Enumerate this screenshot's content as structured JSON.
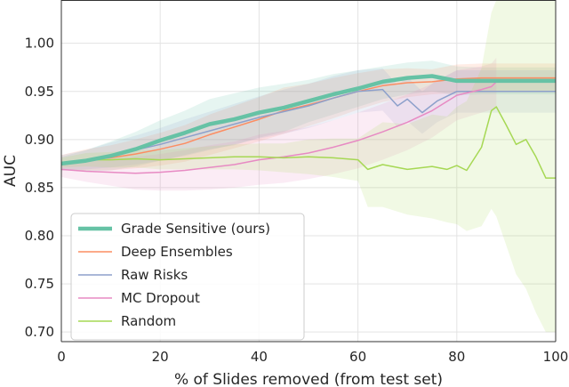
{
  "chart_data": {
    "type": "line",
    "title": "",
    "xlabel": "% of Slides removed (from test set)",
    "ylabel": "AUC",
    "xlim": [
      0,
      100
    ],
    "ylim": [
      0.69,
      1.045
    ],
    "xticks": [
      0,
      20,
      40,
      60,
      80,
      100
    ],
    "xtick_labels": [
      "0",
      "20",
      "40",
      "60",
      "80",
      "100"
    ],
    "yticks": [
      0.7,
      0.75,
      0.8,
      0.85,
      0.9,
      0.95,
      1.0
    ],
    "ytick_labels": [
      "0.70",
      "0.75",
      "0.80",
      "0.85",
      "0.90",
      "0.95",
      "1.00"
    ],
    "grid": true,
    "legend_position": "lower-left",
    "series": [
      {
        "name": "Grade Sensitive (ours)",
        "color": "#66c2a5",
        "emphasis": "thick",
        "x": [
          0,
          5,
          10,
          15,
          20,
          25,
          30,
          35,
          40,
          45,
          50,
          55,
          60,
          65,
          70,
          75,
          80,
          85,
          90,
          95,
          100
        ],
        "y": [
          0.875,
          0.878,
          0.883,
          0.89,
          0.899,
          0.907,
          0.916,
          0.921,
          0.928,
          0.933,
          0.94,
          0.947,
          0.953,
          0.96,
          0.964,
          0.966,
          0.961,
          0.961,
          0.961,
          0.961,
          0.961
        ],
        "band": {
          "lower": [
            0.868,
            0.867,
            0.868,
            0.872,
            0.878,
            0.884,
            0.89,
            0.894,
            0.902,
            0.908,
            0.918,
            0.926,
            0.934,
            0.942,
            0.947,
            0.95,
            0.946,
            0.947,
            0.947,
            0.947,
            0.947
          ],
          "upper": [
            0.882,
            0.889,
            0.898,
            0.908,
            0.92,
            0.93,
            0.942,
            0.948,
            0.954,
            0.958,
            0.962,
            0.968,
            0.972,
            0.976,
            0.98,
            0.982,
            0.976,
            0.975,
            0.975,
            0.975,
            0.975
          ]
        }
      },
      {
        "name": "Deep Ensembles",
        "color": "#fc8d62",
        "x": [
          0,
          5,
          10,
          15,
          20,
          25,
          30,
          35,
          40,
          45,
          50,
          55,
          60,
          65,
          70,
          75,
          80,
          85,
          90,
          95,
          100
        ],
        "y": [
          0.876,
          0.879,
          0.881,
          0.885,
          0.89,
          0.896,
          0.905,
          0.913,
          0.921,
          0.93,
          0.936,
          0.943,
          0.95,
          0.956,
          0.959,
          0.96,
          0.963,
          0.964,
          0.964,
          0.964,
          0.964
        ],
        "band": {
          "lower": [
            0.868,
            0.868,
            0.868,
            0.87,
            0.873,
            0.877,
            0.884,
            0.891,
            0.898,
            0.906,
            0.914,
            0.922,
            0.931,
            0.939,
            0.944,
            0.947,
            0.948,
            0.949,
            0.949,
            0.949,
            0.949
          ],
          "upper": [
            0.884,
            0.89,
            0.894,
            0.9,
            0.907,
            0.915,
            0.926,
            0.935,
            0.944,
            0.954,
            0.958,
            0.964,
            0.969,
            0.973,
            0.974,
            0.973,
            0.978,
            0.979,
            0.979,
            0.979,
            0.979
          ]
        }
      },
      {
        "name": "Raw Risks",
        "color": "#8da0cb",
        "x": [
          0,
          5,
          10,
          15,
          20,
          25,
          30,
          35,
          40,
          45,
          50,
          55,
          60,
          65,
          68,
          70,
          73,
          76,
          80,
          85,
          90,
          95,
          100
        ],
        "y": [
          0.876,
          0.879,
          0.884,
          0.889,
          0.895,
          0.902,
          0.909,
          0.916,
          0.923,
          0.929,
          0.935,
          0.943,
          0.95,
          0.952,
          0.935,
          0.942,
          0.928,
          0.94,
          0.95,
          0.95,
          0.95,
          0.95,
          0.95
        ],
        "band": {
          "lower": [
            0.868,
            0.869,
            0.871,
            0.874,
            0.878,
            0.883,
            0.889,
            0.895,
            0.901,
            0.906,
            0.912,
            0.92,
            0.928,
            0.93,
            0.913,
            0.919,
            0.906,
            0.918,
            0.928,
            0.928,
            0.928,
            0.928,
            0.928
          ],
          "upper": [
            0.884,
            0.889,
            0.897,
            0.904,
            0.912,
            0.921,
            0.929,
            0.937,
            0.945,
            0.952,
            0.958,
            0.966,
            0.972,
            0.974,
            0.957,
            0.965,
            0.95,
            0.962,
            0.972,
            0.972,
            0.972,
            0.972,
            0.972
          ]
        }
      },
      {
        "name": "MC Dropout",
        "color": "#e78ac3",
        "x": [
          0,
          5,
          10,
          15,
          20,
          25,
          30,
          35,
          40,
          45,
          50,
          55,
          60,
          65,
          70,
          75,
          80,
          85,
          87,
          88
        ],
        "y": [
          0.869,
          0.867,
          0.866,
          0.865,
          0.866,
          0.868,
          0.871,
          0.874,
          0.879,
          0.882,
          0.886,
          0.892,
          0.899,
          0.908,
          0.918,
          0.93,
          0.946,
          0.952,
          0.955,
          0.96
        ],
        "band": {
          "lower": [
            0.861,
            0.856,
            0.852,
            0.848,
            0.847,
            0.847,
            0.848,
            0.85,
            0.853,
            0.855,
            0.859,
            0.864,
            0.87,
            0.879,
            0.889,
            0.902,
            0.92,
            0.928,
            0.931,
            0.935
          ],
          "upper": [
            0.877,
            0.878,
            0.88,
            0.882,
            0.885,
            0.889,
            0.894,
            0.898,
            0.905,
            0.909,
            0.913,
            0.92,
            0.928,
            0.937,
            0.947,
            0.958,
            0.972,
            0.976,
            0.979,
            0.985
          ]
        }
      },
      {
        "name": "Random",
        "color": "#a6d854",
        "x": [
          0,
          5,
          10,
          15,
          20,
          25,
          30,
          35,
          40,
          45,
          50,
          55,
          60,
          62,
          65,
          70,
          75,
          78,
          80,
          82,
          85,
          87,
          88,
          90,
          92,
          94,
          96,
          98,
          100
        ],
        "y": [
          0.876,
          0.879,
          0.879,
          0.88,
          0.879,
          0.88,
          0.881,
          0.882,
          0.882,
          0.881,
          0.882,
          0.881,
          0.879,
          0.869,
          0.874,
          0.869,
          0.872,
          0.869,
          0.873,
          0.868,
          0.892,
          0.93,
          0.934,
          0.915,
          0.895,
          0.9,
          0.882,
          0.86,
          0.86
        ],
        "band": {
          "lower": [
            0.871,
            0.872,
            0.871,
            0.871,
            0.869,
            0.869,
            0.869,
            0.869,
            0.868,
            0.866,
            0.864,
            0.861,
            0.857,
            0.83,
            0.83,
            0.822,
            0.818,
            0.814,
            0.812,
            0.805,
            0.81,
            0.828,
            0.82,
            0.79,
            0.76,
            0.745,
            0.72,
            0.7,
            0.7
          ],
          "upper": [
            0.881,
            0.886,
            0.887,
            0.889,
            0.889,
            0.891,
            0.893,
            0.895,
            0.896,
            0.896,
            0.9,
            0.901,
            0.901,
            0.908,
            0.918,
            0.916,
            0.926,
            0.924,
            0.934,
            0.94,
            0.974,
            1.032,
            1.045,
            1.045,
            1.045,
            1.045,
            1.045,
            1.045,
            1.045
          ]
        }
      }
    ]
  }
}
